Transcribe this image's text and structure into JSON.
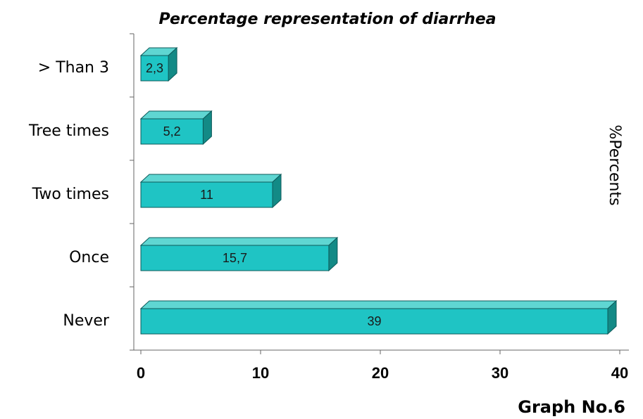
{
  "chart_data": {
    "type": "bar",
    "orientation": "horizontal",
    "title": "Percentage representation of diarrhea",
    "y2_label": "%Percents",
    "caption": "Graph No.6",
    "categories": [
      "> Than 3",
      "Tree times",
      "Two times",
      "Once",
      "Never"
    ],
    "values": [
      2.3,
      5.2,
      11,
      15.7,
      39
    ],
    "value_labels": [
      "2,3",
      "5,2",
      "11",
      "15,7",
      "39"
    ],
    "color": "#1fc4c4",
    "xlim": [
      0,
      40
    ],
    "xticks": [
      0,
      10,
      20,
      30,
      40
    ]
  }
}
